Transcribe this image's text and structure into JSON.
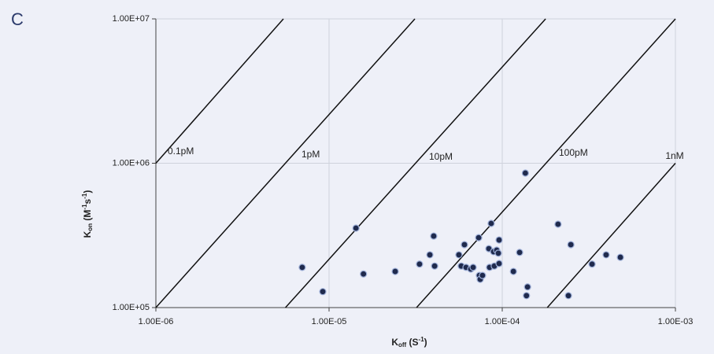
{
  "panel_label": "C",
  "chart_data": {
    "type": "scatter",
    "log_x": true,
    "log_y": true,
    "grid": true,
    "color": "#1f2a4d",
    "xlabel": [
      "K",
      "off",
      " (S",
      "-1",
      ")"
    ],
    "ylabel": [
      "K",
      "on",
      " (M",
      "-1",
      "s",
      "-1",
      ")"
    ],
    "xlim": [
      1e-06,
      0.001
    ],
    "ylim": [
      100000.0,
      10000000.0
    ],
    "xticks": [
      {
        "value": 1e-06,
        "label": "1.00E-06"
      },
      {
        "value": 1e-05,
        "label": "1.00E-05"
      },
      {
        "value": 0.0001,
        "label": "1.00E-04"
      },
      {
        "value": 0.001,
        "label": "1.00E-03"
      }
    ],
    "yticks": [
      {
        "value": 100000.0,
        "label": "1.00E+05"
      },
      {
        "value": 1000000.0,
        "label": "1.00E+06"
      },
      {
        "value": 10000000.0,
        "label": "1.00E+07"
      }
    ],
    "lines": [
      {
        "label": "0.1pM",
        "x": [
          1e-06,
          5.45e-06
        ],
        "y": [
          1000000.0,
          10000000.0
        ]
      },
      {
        "label": "1pM",
        "x": [
          1e-06,
          3.13e-05
        ],
        "y": [
          100000.0,
          10000000.0
        ]
      },
      {
        "label": "10pM",
        "x": [
          5.6e-06,
          0.000178
        ],
        "y": [
          100000.0,
          10000000.0
        ]
      },
      {
        "label": "100pM",
        "x": [
          3.2e-05,
          0.001
        ],
        "y": [
          100000.0,
          10000000.0
        ]
      },
      {
        "label": "1nM",
        "x": [
          0.000182,
          0.001
        ],
        "y": [
          100000.0,
          1000000.0
        ]
      }
    ],
    "x": [
      7e-06,
      9.2e-06,
      1.43e-05,
      1.58e-05,
      2.41e-05,
      3.33e-05,
      3.82e-05,
      4.02e-05,
      4.07e-05,
      5.62e-05,
      5.8e-05,
      6.05e-05,
      6.18e-05,
      6.58e-05,
      6.79e-05,
      7.31e-05,
      7.38e-05,
      7.46e-05,
      7.69e-05,
      8.37e-05,
      8.45e-05,
      8.63e-05,
      8.91e-05,
      9e-05,
      9.29e-05,
      9.49e-05,
      9.59e-05,
      9.59e-05,
      0.000116,
      0.000126,
      0.000136,
      0.00014,
      0.000138,
      0.00021,
      0.000249,
      0.000241,
      0.00033,
      0.000398,
      0.000481
    ],
    "values": [
      190000.0,
      129000.0,
      355000.0,
      171000.0,
      178000.0,
      200000.0,
      232000.0,
      313000.0,
      194000.0,
      232000.0,
      194000.0,
      273000.0,
      190000.0,
      185000.0,
      190000.0,
      305000.0,
      167000.0,
      157000.0,
      167000.0,
      256000.0,
      190000.0,
      383000.0,
      244000.0,
      194000.0,
      250000.0,
      238000.0,
      294000.0,
      202000.0,
      178000.0,
      241000.0,
      855000.0,
      139000.0,
      121000.0,
      378000.0,
      273000.0,
      121000.0,
      200000.0,
      232000.0,
      223000.0
    ]
  }
}
